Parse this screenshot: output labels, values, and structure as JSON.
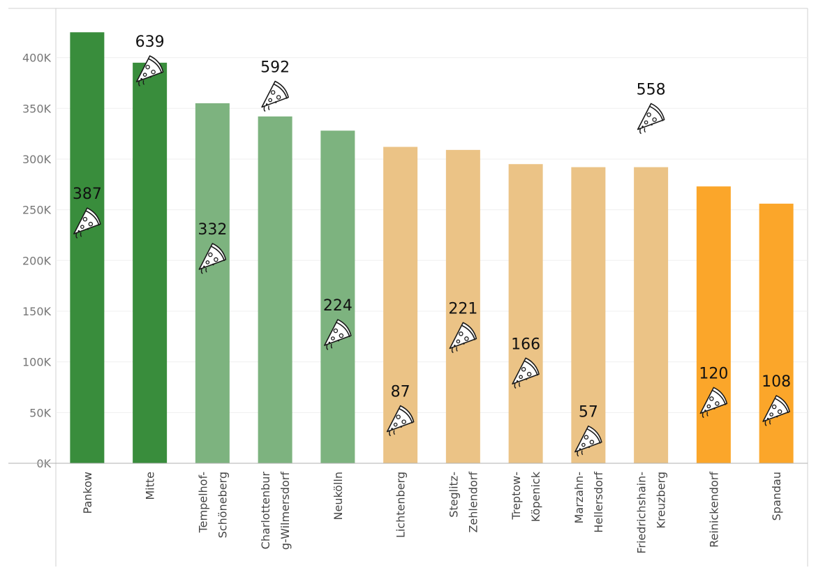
{
  "chart_data": {
    "type": "bar",
    "title": "",
    "xlabel": "",
    "ylabel": "",
    "ylim": [
      0,
      445000
    ],
    "yticks": [
      0,
      50000,
      100000,
      150000,
      200000,
      250000,
      300000,
      350000,
      400000
    ],
    "ytick_labels": [
      "0K",
      "50K",
      "100K",
      "150K",
      "200K",
      "250K",
      "300K",
      "350K",
      "400K"
    ],
    "grid": true,
    "categories": [
      [
        "Pankow"
      ],
      [
        "Mitte"
      ],
      [
        "Tempelhof-",
        "Schöneberg"
      ],
      [
        "Charlottenbur",
        "g-Wilmersdorf"
      ],
      [
        "Neukölln"
      ],
      [
        "Lichtenberg"
      ],
      [
        "Steglitz-",
        "Zehlendorf"
      ],
      [
        "Treptow-",
        "Köpenick"
      ],
      [
        "Marzahn-",
        "Hellersdorf"
      ],
      [
        "Friedrichshain-",
        "Kreuzberg"
      ],
      [
        "Reinickendorf"
      ],
      [
        "Spandau"
      ]
    ],
    "values": [
      425000,
      395000,
      355000,
      342000,
      328000,
      312000,
      309000,
      295000,
      292000,
      292000,
      273000,
      256000
    ],
    "bar_colors": [
      "#398d3c",
      "#398d3c",
      "#7db37f",
      "#7db37f",
      "#7db37f",
      "#ebc386",
      "#ebc386",
      "#ebc386",
      "#ebc386",
      "#ebc386",
      "#fba62a",
      "#fba62a"
    ],
    "markers": {
      "icon": "pizza-slice-icon",
      "values": [
        387,
        639,
        332,
        592,
        224,
        87,
        221,
        166,
        57,
        558,
        120,
        108
      ],
      "positions": [
        240000,
        390000,
        205000,
        365000,
        130000,
        45000,
        127000,
        92000,
        25000,
        343000,
        63000,
        55000
      ]
    }
  }
}
